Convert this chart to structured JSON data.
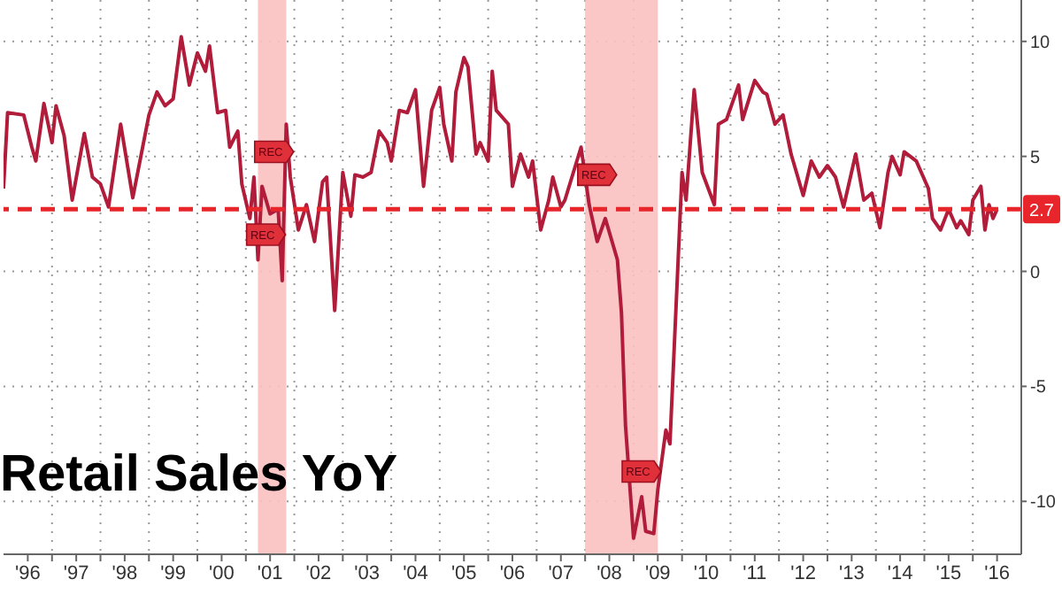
{
  "chart_data": {
    "type": "line",
    "title": "Retail Sales YoY",
    "series": [
      {
        "color": "#b01c3a",
        "x": [
          "1996-01",
          "1996-02",
          "1996-06",
          "1996-08",
          "1996-09",
          "1996-11",
          "1997-01",
          "1997-02",
          "1997-04",
          "1997-06",
          "1997-09",
          "1997-11",
          "1998-01",
          "1998-03",
          "1998-06",
          "1998-09",
          "1999-01",
          "1999-03",
          "1999-05",
          "1999-07",
          "1999-09",
          "1999-11",
          "2000-01",
          "2000-03",
          "2000-04",
          "2000-06",
          "2000-08",
          "2000-09",
          "2000-11",
          "2000-12",
          "2001-02",
          "2001-03",
          "2001-04",
          "2001-05",
          "2001-07",
          "2001-09",
          "2001-10",
          "2001-11",
          "2001-12",
          "2002-02",
          "2002-04",
          "2002-06",
          "2002-08",
          "2002-09",
          "2002-11",
          "2003-01",
          "2003-03",
          "2003-04",
          "2003-06",
          "2003-08",
          "2003-10",
          "2003-12",
          "2004-01",
          "2004-03",
          "2004-05",
          "2004-07",
          "2004-09",
          "2004-11",
          "2005-01",
          "2005-02",
          "2005-04",
          "2005-05",
          "2005-07",
          "2005-08",
          "2005-10",
          "2005-11",
          "2006-01",
          "2006-02",
          "2006-03",
          "2006-06",
          "2006-07",
          "2006-09",
          "2006-11",
          "2006-12",
          "2007-02",
          "2007-04",
          "2007-05",
          "2007-07",
          "2007-08",
          "2007-12",
          "2008-02",
          "2008-04",
          "2008-06",
          "2008-09",
          "2008-10",
          "2008-11",
          "2009-01",
          "2009-03",
          "2009-04",
          "2009-06",
          "2009-07",
          "2009-09",
          "2009-10",
          "2010-01",
          "2010-02",
          "2010-04",
          "2010-06",
          "2010-09",
          "2010-10",
          "2010-12",
          "2011-03",
          "2011-04",
          "2011-07",
          "2011-09",
          "2011-10",
          "2011-12",
          "2012-02",
          "2012-04",
          "2012-07",
          "2012-09",
          "2012-11",
          "2013-01",
          "2013-03",
          "2013-05",
          "2013-08",
          "2013-10",
          "2013-12",
          "2014-02",
          "2014-04",
          "2014-05",
          "2014-07",
          "2014-08",
          "2014-11",
          "2015-02",
          "2015-03",
          "2015-05",
          "2015-07",
          "2015-09",
          "2015-10",
          "2015-12",
          "2016-01",
          "2016-03",
          "2016-04",
          "2016-05",
          "2016-06",
          "2016-07"
        ],
        "values": [
          3.6,
          6.9,
          6.8,
          5.4,
          4.8,
          7.3,
          5.6,
          7.2,
          5.9,
          3.1,
          6.0,
          4.1,
          3.8,
          2.8,
          6.4,
          3.2,
          6.8,
          7.8,
          7.2,
          7.5,
          10.2,
          8.1,
          9.5,
          8.7,
          9.8,
          6.9,
          7.0,
          5.4,
          6.1,
          3.8,
          2.3,
          4.1,
          0.5,
          3.7,
          2.5,
          2.7,
          -0.4,
          6.4,
          4.1,
          1.8,
          2.9,
          1.3,
          3.9,
          4.1,
          -1.7,
          4.3,
          2.4,
          4.2,
          4.1,
          4.3,
          6.1,
          5.6,
          4.8,
          7.0,
          6.9,
          7.9,
          3.7,
          7.0,
          8.0,
          6.4,
          4.8,
          7.8,
          9.3,
          8.9,
          5.1,
          5.6,
          4.8,
          8.7,
          7.0,
          6.4,
          3.7,
          5.1,
          4.1,
          4.8,
          1.8,
          3.1,
          4.1,
          2.8,
          3.1,
          5.4,
          2.9,
          1.3,
          2.3,
          0.5,
          -1.8,
          -6.7,
          -11.6,
          -9.8,
          -11.3,
          -11.4,
          -9.5,
          -6.9,
          -7.5,
          4.3,
          3.1,
          7.9,
          4.3,
          2.9,
          6.4,
          6.6,
          8.1,
          6.6,
          8.3,
          7.8,
          7.7,
          6.4,
          6.8,
          5.1,
          3.3,
          4.8,
          4.1,
          4.6,
          4.1,
          2.8,
          5.1,
          3.1,
          3.4,
          1.9,
          4.3,
          5.0,
          4.2,
          5.2,
          4.8,
          3.6,
          2.3,
          1.8,
          2.7,
          1.9,
          2.2,
          1.6,
          3.1,
          3.7,
          1.8,
          2.9,
          2.3,
          2.7
        ]
      }
    ],
    "xlim": [
      "1996",
      "2017"
    ],
    "xticks": [
      {
        "value": "1996-07",
        "label": "'96"
      },
      {
        "value": "1997",
        "label": null
      },
      {
        "value": "1997-07",
        "label": "'97"
      },
      {
        "value": "1998",
        "label": null
      },
      {
        "value": "1998-07",
        "label": "'98"
      },
      {
        "value": "1999",
        "label": null
      },
      {
        "value": "1999-07",
        "label": "'99"
      },
      {
        "value": "2000",
        "label": null
      },
      {
        "value": "2000-07",
        "label": "'00"
      },
      {
        "value": "2001",
        "label": null
      },
      {
        "value": "2001-07",
        "label": "'01"
      },
      {
        "value": "2002",
        "label": null
      },
      {
        "value": "2002-07",
        "label": "'02"
      },
      {
        "value": "2003",
        "label": null
      },
      {
        "value": "2003-07",
        "label": "'03"
      },
      {
        "value": "2004",
        "label": null
      },
      {
        "value": "2004-07",
        "label": "'04"
      },
      {
        "value": "2005",
        "label": null
      },
      {
        "value": "2005-07",
        "label": "'05"
      },
      {
        "value": "2006",
        "label": null
      },
      {
        "value": "2006-07",
        "label": "'06"
      },
      {
        "value": "2007",
        "label": null
      },
      {
        "value": "2007-07",
        "label": "'07"
      },
      {
        "value": "2008",
        "label": null
      },
      {
        "value": "2008-07",
        "label": "'08"
      },
      {
        "value": "2009",
        "label": null
      },
      {
        "value": "2009-07",
        "label": "'09"
      },
      {
        "value": "2010",
        "label": null
      },
      {
        "value": "2010-07",
        "label": "'10"
      },
      {
        "value": "2011",
        "label": null
      },
      {
        "value": "2011-07",
        "label": "'11"
      },
      {
        "value": "2012",
        "label": null
      },
      {
        "value": "2012-07",
        "label": "'12"
      },
      {
        "value": "2013",
        "label": null
      },
      {
        "value": "2013-07",
        "label": "'13"
      },
      {
        "value": "2014",
        "label": null
      },
      {
        "value": "2014-07",
        "label": "'14"
      },
      {
        "value": "2015",
        "label": null
      },
      {
        "value": "2015-07",
        "label": "'15"
      },
      {
        "value": "2016",
        "label": null
      },
      {
        "value": "2016-07",
        "label": "'16"
      }
    ],
    "ylim": [
      -12.3,
      11.8
    ],
    "yticks": [
      -10,
      -5,
      0,
      5,
      10
    ],
    "grid": true,
    "line_style": "solid",
    "marker": "none",
    "legend": false,
    "ref_lines": [
      {
        "axis": "y",
        "value": 2.7,
        "label": "2.7",
        "color": "#e8252a",
        "line_style": "dashed"
      }
    ],
    "bands": [
      {
        "axis": "x",
        "from": "2001-04",
        "to": "2001-11",
        "color": "#f9c0c0"
      },
      {
        "axis": "x",
        "from": "2008-01",
        "to": "2009-07",
        "color": "#f9c0c0"
      }
    ],
    "annotations": [
      {
        "text": "REC",
        "x": "2001-06",
        "y": 1.6
      },
      {
        "text": "REC",
        "x": "2001-08",
        "y": 5.2
      },
      {
        "text": "REC",
        "x": "2008-04",
        "y": 4.2
      },
      {
        "text": "REC",
        "x": "2009-03",
        "y": -8.7
      }
    ]
  }
}
